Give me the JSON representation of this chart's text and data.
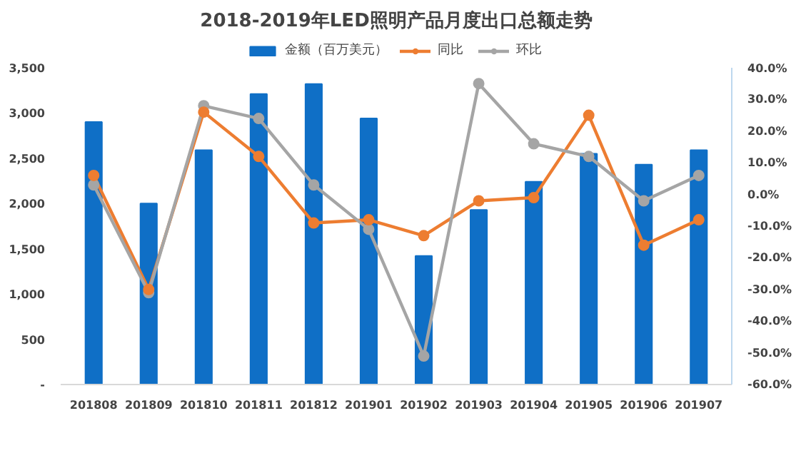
{
  "chart_data": {
    "type": "bar",
    "title": "2018-2019年LED照明产品月度出口总额走势",
    "categories": [
      "201808",
      "201809",
      "201810",
      "201811",
      "201812",
      "201901",
      "201902",
      "201903",
      "201904",
      "201905",
      "201906",
      "201907"
    ],
    "series": [
      {
        "name": "金额（百万美元）",
        "color": "#0f6fc6",
        "values": [
          2900,
          2000,
          2590,
          3210,
          3320,
          2940,
          1420,
          1930,
          2240,
          2550,
          2430,
          2590
        ]
      },
      {
        "name": "同比",
        "type": "line",
        "axis": "y2",
        "color": "#ed7d31",
        "values": [
          6,
          -30,
          26,
          12,
          -9,
          -8,
          -13,
          -2,
          -1,
          25,
          -16,
          -8
        ]
      },
      {
        "name": "环比",
        "type": "line",
        "axis": "y2",
        "color": "#a5a5a5",
        "values": [
          3,
          -31,
          28,
          24,
          3,
          -11,
          -51,
          35,
          16,
          12,
          -2,
          6
        ]
      }
    ],
    "ylim": [
      0,
      3500
    ],
    "yticks": [
      {
        "value": 0,
        "label": "-"
      },
      {
        "value": 500,
        "label": "500"
      },
      {
        "value": 1000,
        "label": "1,000"
      },
      {
        "value": 1500,
        "label": "1,500"
      },
      {
        "value": 2000,
        "label": "2,000"
      },
      {
        "value": 2500,
        "label": "2,500"
      },
      {
        "value": 3000,
        "label": "3,000"
      },
      {
        "value": 3500,
        "label": "3,500"
      }
    ],
    "y2lim": [
      -60,
      40
    ],
    "y2ticks": [
      {
        "value": -60,
        "label": "-60.0%"
      },
      {
        "value": -50,
        "label": "-50.0%"
      },
      {
        "value": -40,
        "label": "-40.0%"
      },
      {
        "value": -30,
        "label": "-30.0%"
      },
      {
        "value": -20,
        "label": "-20.0%"
      },
      {
        "value": -10,
        "label": "-10.0%"
      },
      {
        "value": 0,
        "label": "0.0%"
      },
      {
        "value": 10,
        "label": "10.0%"
      },
      {
        "value": 20,
        "label": "20.0%"
      },
      {
        "value": 30,
        "label": "30.0%"
      },
      {
        "value": 40,
        "label": "40.0%"
      }
    ],
    "marker": "circle",
    "line_style": "solid",
    "legend": "top",
    "grid": false
  }
}
